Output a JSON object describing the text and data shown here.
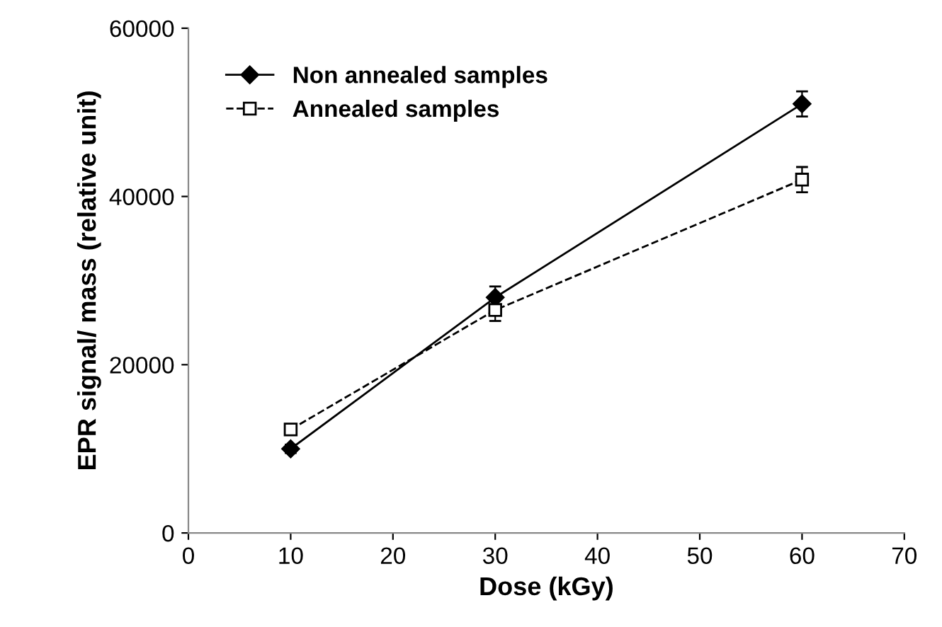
{
  "chart_data": {
    "type": "line",
    "xlabel": "Dose (kGy)",
    "ylabel": "EPR signal/ mass (relative unit)",
    "x": [
      10,
      30,
      60
    ],
    "series": [
      {
        "name": "Non annealed samples",
        "color": "#000000",
        "values": [
          10000,
          28000,
          51000
        ],
        "errors": [
          500,
          1300,
          1500
        ],
        "marker": "diamond",
        "line_style": "solid"
      },
      {
        "name": "Annealed samples",
        "color": "#000000",
        "values": [
          12300,
          26500,
          42000
        ],
        "errors": [
          500,
          1300,
          1500
        ],
        "marker": "square",
        "line_style": "dashed"
      }
    ],
    "xlim": [
      0,
      70
    ],
    "xticks": [
      0,
      10,
      20,
      30,
      40,
      50,
      60,
      70
    ],
    "ylim": [
      0,
      60000
    ],
    "yticks": [
      0,
      20000,
      40000,
      60000
    ],
    "grid": false,
    "legend": "top left"
  }
}
